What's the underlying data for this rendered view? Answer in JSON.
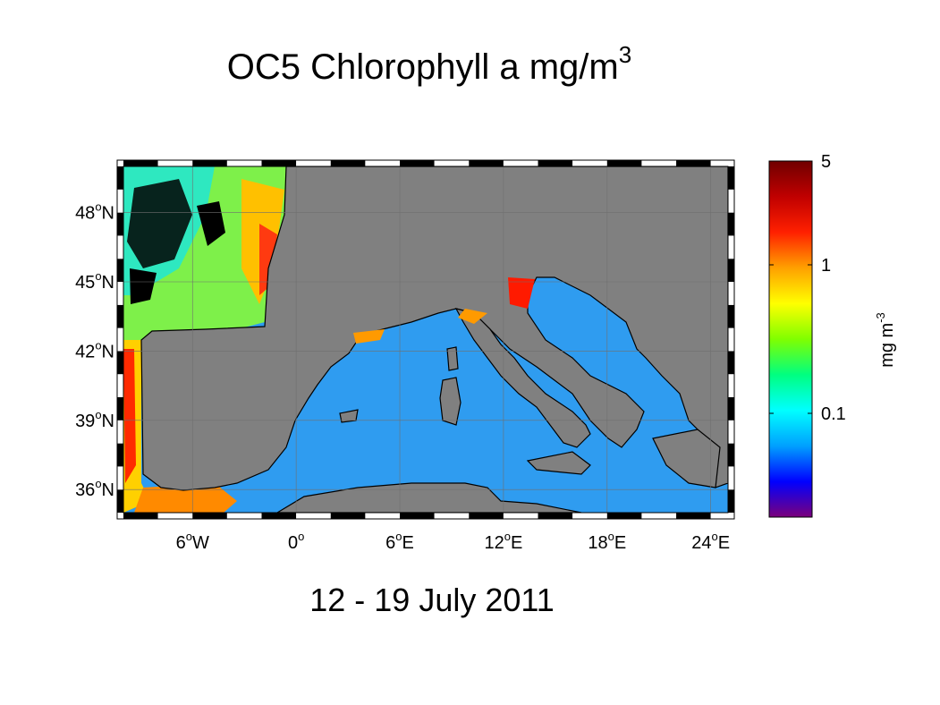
{
  "title": {
    "text": "OC5 Chlorophyll a mg/m",
    "superscript": "3"
  },
  "date": "12 - 19 July 2011",
  "map": {
    "lon_range": [
      -10,
      25
    ],
    "lat_range": [
      35,
      50
    ],
    "lon_ticks": [
      {
        "value": -6,
        "num": "6",
        "sup": "o",
        "hemi": "W"
      },
      {
        "value": 0,
        "num": "0",
        "sup": "o",
        "hemi": ""
      },
      {
        "value": 6,
        "num": "6",
        "sup": "o",
        "hemi": "E"
      },
      {
        "value": 12,
        "num": "12",
        "sup": "o",
        "hemi": "E"
      },
      {
        "value": 18,
        "num": "18",
        "sup": "o",
        "hemi": "E"
      },
      {
        "value": 24,
        "num": "24",
        "sup": "o",
        "hemi": "E"
      }
    ],
    "lat_ticks": [
      {
        "value": 36,
        "num": "36",
        "sup": "o",
        "hemi": "N"
      },
      {
        "value": 39,
        "num": "39",
        "sup": "o",
        "hemi": "N"
      },
      {
        "value": 42,
        "num": "42",
        "sup": "o",
        "hemi": "N"
      },
      {
        "value": 45,
        "num": "45",
        "sup": "o",
        "hemi": "N"
      },
      {
        "value": 48,
        "num": "48",
        "sup": "o",
        "hemi": "N"
      }
    ],
    "land_color": "#808080",
    "sea_color": "#2f9cf0",
    "nodata_color": "#000000"
  },
  "colorbar": {
    "scale": "log",
    "range": [
      0.02,
      5
    ],
    "ticks": [
      {
        "value": 5,
        "label": "5"
      },
      {
        "value": 1,
        "label": "1"
      },
      {
        "value": 0.1,
        "label": "0.1"
      }
    ],
    "label": {
      "text": "mg m",
      "superscript": "-3"
    },
    "colormap": [
      "#7b007b",
      "#0000ff",
      "#00a0ff",
      "#00ffff",
      "#00ff80",
      "#80ff00",
      "#ffff00",
      "#ffa000",
      "#ff2000",
      "#c00000",
      "#700000"
    ]
  }
}
